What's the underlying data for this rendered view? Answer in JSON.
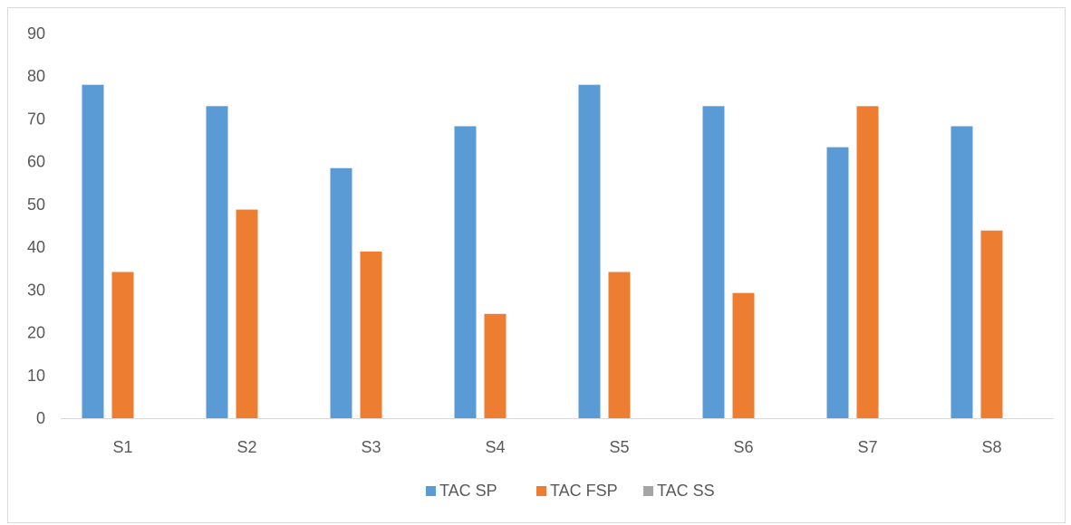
{
  "chart_data": {
    "type": "bar",
    "title": "",
    "xlabel": "",
    "ylabel": "",
    "categories": [
      "S1",
      "S2",
      "S3",
      "S4",
      "S5",
      "S6",
      "S7",
      "S8"
    ],
    "ylim": [
      0,
      90
    ],
    "yticks": [
      0,
      10,
      20,
      30,
      40,
      50,
      60,
      70,
      80,
      90
    ],
    "grid": false,
    "legend_position": "bottom",
    "series": [
      {
        "name": "TAC SP",
        "color": "#5b9bd5",
        "values": [
          78,
          73,
          58.5,
          68.3,
          78,
          73,
          63.4,
          68.3
        ]
      },
      {
        "name": "TAC FSP",
        "color": "#ed7d31",
        "values": [
          34.2,
          48.8,
          39,
          24.4,
          34.2,
          29.3,
          73,
          43.9
        ]
      },
      {
        "name": "TAC SS",
        "color": "#a5a5a5",
        "values": [
          0,
          0,
          0,
          0,
          0,
          0,
          0,
          0
        ]
      }
    ]
  }
}
